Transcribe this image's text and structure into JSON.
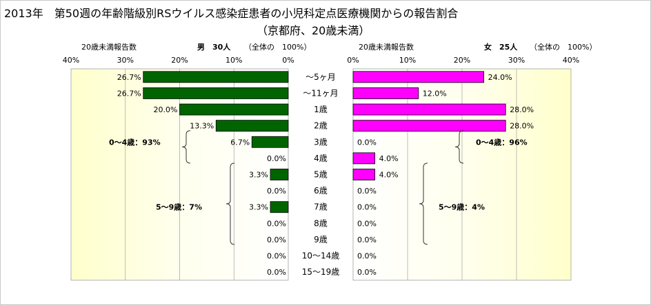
{
  "chart_data": {
    "type": "bar",
    "title": "2013年　第50週の年齢階級別RSウイルス感染症患者の小児科定点医療機関からの報告割合",
    "subtitle": "（京都府、20歳未満）",
    "categories": [
      "～5ヶ月",
      "～11ヶ月",
      "1歳",
      "2歳",
      "3歳",
      "4歳",
      "5歳",
      "6歳",
      "7歳",
      "8歳",
      "9歳",
      "10～14歳",
      "15～19歳"
    ],
    "xlim": [
      0,
      40
    ],
    "x_ticks": [
      "0%",
      "10%",
      "20%",
      "30%",
      "40%"
    ],
    "x_ticks_left": [
      "40%",
      "30%",
      "20%",
      "10%",
      "0%"
    ],
    "grid": true,
    "series": [
      {
        "name": "男",
        "side": "left",
        "color": "#006400",
        "values": [
          26.7,
          26.7,
          20.0,
          13.3,
          6.7,
          0.0,
          3.3,
          0.0,
          3.3,
          0.0,
          0.0,
          0.0,
          0.0
        ],
        "labels": [
          "26.7%",
          "26.7%",
          "20.0%",
          "13.3%",
          "6.7%",
          "0.0%",
          "3.3%",
          "0.0%",
          "3.3%",
          "0.0%",
          "0.0%",
          "0.0%",
          "0.0%"
        ],
        "axis_title": "20歳未満報告数",
        "header": "男　30人",
        "header_note": "（全体の　100%）",
        "groups": [
          {
            "label": "0～4歳：93%",
            "from": 0,
            "to": 5
          },
          {
            "label": "5～9歳：7%",
            "from": 6,
            "to": 10
          }
        ]
      },
      {
        "name": "女",
        "side": "right",
        "color": "#ff00ff",
        "values": [
          24.0,
          12.0,
          28.0,
          28.0,
          0.0,
          4.0,
          4.0,
          0.0,
          0.0,
          0.0,
          0.0,
          0.0,
          0.0
        ],
        "labels": [
          "24.0%",
          "12.0%",
          "28.0%",
          "28.0%",
          "0.0%",
          "4.0%",
          "4.0%",
          "0.0%",
          "0.0%",
          "0.0%",
          "0.0%",
          "0.0%",
          "0.0%"
        ],
        "axis_title": "20歳未満報告数",
        "header": "女　25人",
        "header_note": "（全体の　100%）",
        "groups": [
          {
            "label": "0～4歳：96%",
            "from": 0,
            "to": 5
          },
          {
            "label": "5～9歳：4%",
            "from": 6,
            "to": 10
          }
        ]
      }
    ]
  }
}
